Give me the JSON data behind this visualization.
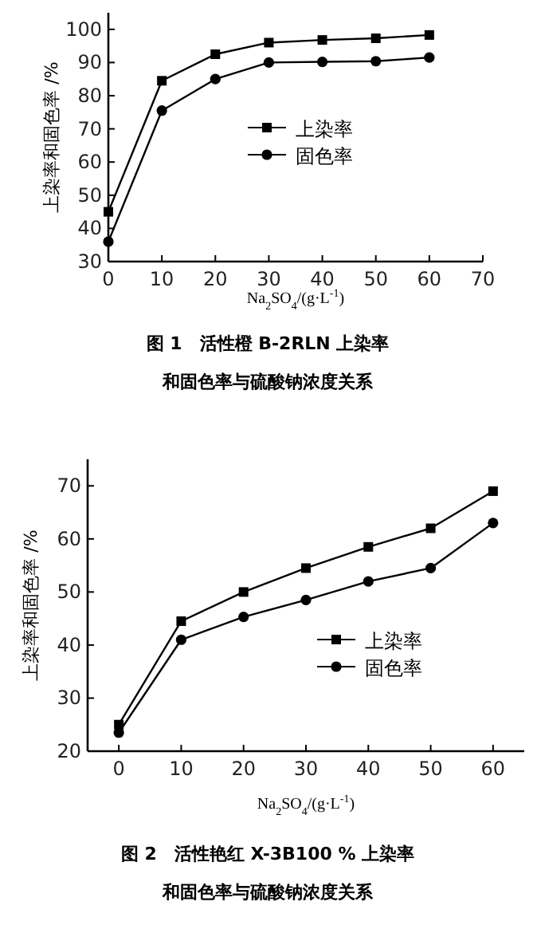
{
  "chart_data": [
    {
      "type": "line",
      "title": "图 1　活性橙 B-2RLN 上染率和固色率与硫酸钠浓度关系",
      "xlabel": "Na$_{2}$SO$_{4}$/(g·L$^{-1}$)",
      "ylabel": "上染率和固色率 /%",
      "x": [
        0,
        10,
        20,
        30,
        40,
        50,
        60
      ],
      "xlim": [
        0,
        70
      ],
      "xticks": [
        0,
        10,
        20,
        30,
        40,
        50,
        60,
        70
      ],
      "ylim": [
        30,
        105
      ],
      "yticks": [
        30,
        40,
        50,
        60,
        70,
        80,
        90,
        100
      ],
      "legend": "center",
      "grid": false,
      "series": [
        {
          "name": "上染率",
          "color": "#000000",
          "marker": "square",
          "values": [
            45,
            84.5,
            92.5,
            96,
            96.8,
            97.3,
            98.3
          ]
        },
        {
          "name": "固色率",
          "color": "#000000",
          "marker": "circle",
          "values": [
            36,
            75.5,
            85,
            90,
            90.2,
            90.4,
            91.5
          ]
        }
      ]
    },
    {
      "type": "line",
      "title": "图 2　活性艳红 X-3B100 % 上染率和固色率与硫酸钠浓度关系",
      "xlabel": "Na$_{2}$SO$_{4}$/(g·L$^{-1}$)",
      "ylabel": "上染率和固色率 /%",
      "x": [
        0,
        10,
        20,
        30,
        40,
        50,
        60
      ],
      "xlim": [
        -5,
        65
      ],
      "xticks": [
        0,
        10,
        20,
        30,
        40,
        50,
        60
      ],
      "ylim": [
        20,
        75
      ],
      "yticks": [
        20,
        30,
        40,
        50,
        60,
        70
      ],
      "legend": "bottom right",
      "grid": false,
      "series": [
        {
          "name": "上染率",
          "color": "#000000",
          "marker": "square",
          "values": [
            25,
            44.5,
            50,
            54.5,
            58.5,
            62,
            69
          ]
        },
        {
          "name": "固色率",
          "color": "#000000",
          "marker": "circle",
          "values": [
            23.5,
            41,
            45.3,
            48.5,
            52,
            54.5,
            63
          ]
        }
      ]
    }
  ]
}
